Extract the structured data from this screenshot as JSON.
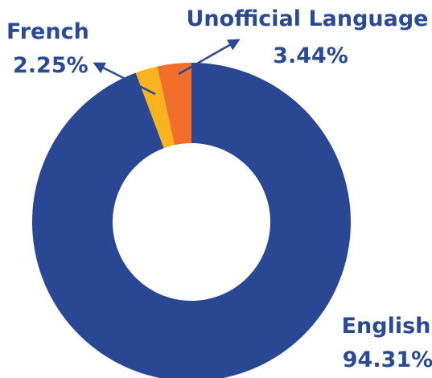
{
  "chart_data": {
    "type": "donut",
    "categories": [
      "English",
      "French",
      "Unofficial Language"
    ],
    "values": [
      94.31,
      2.25,
      3.44
    ],
    "value_labels": [
      "94.31%",
      "2.25%",
      "3.44%"
    ],
    "colors": [
      "#2a4793",
      "#f9b31f",
      "#f26f2b"
    ]
  }
}
